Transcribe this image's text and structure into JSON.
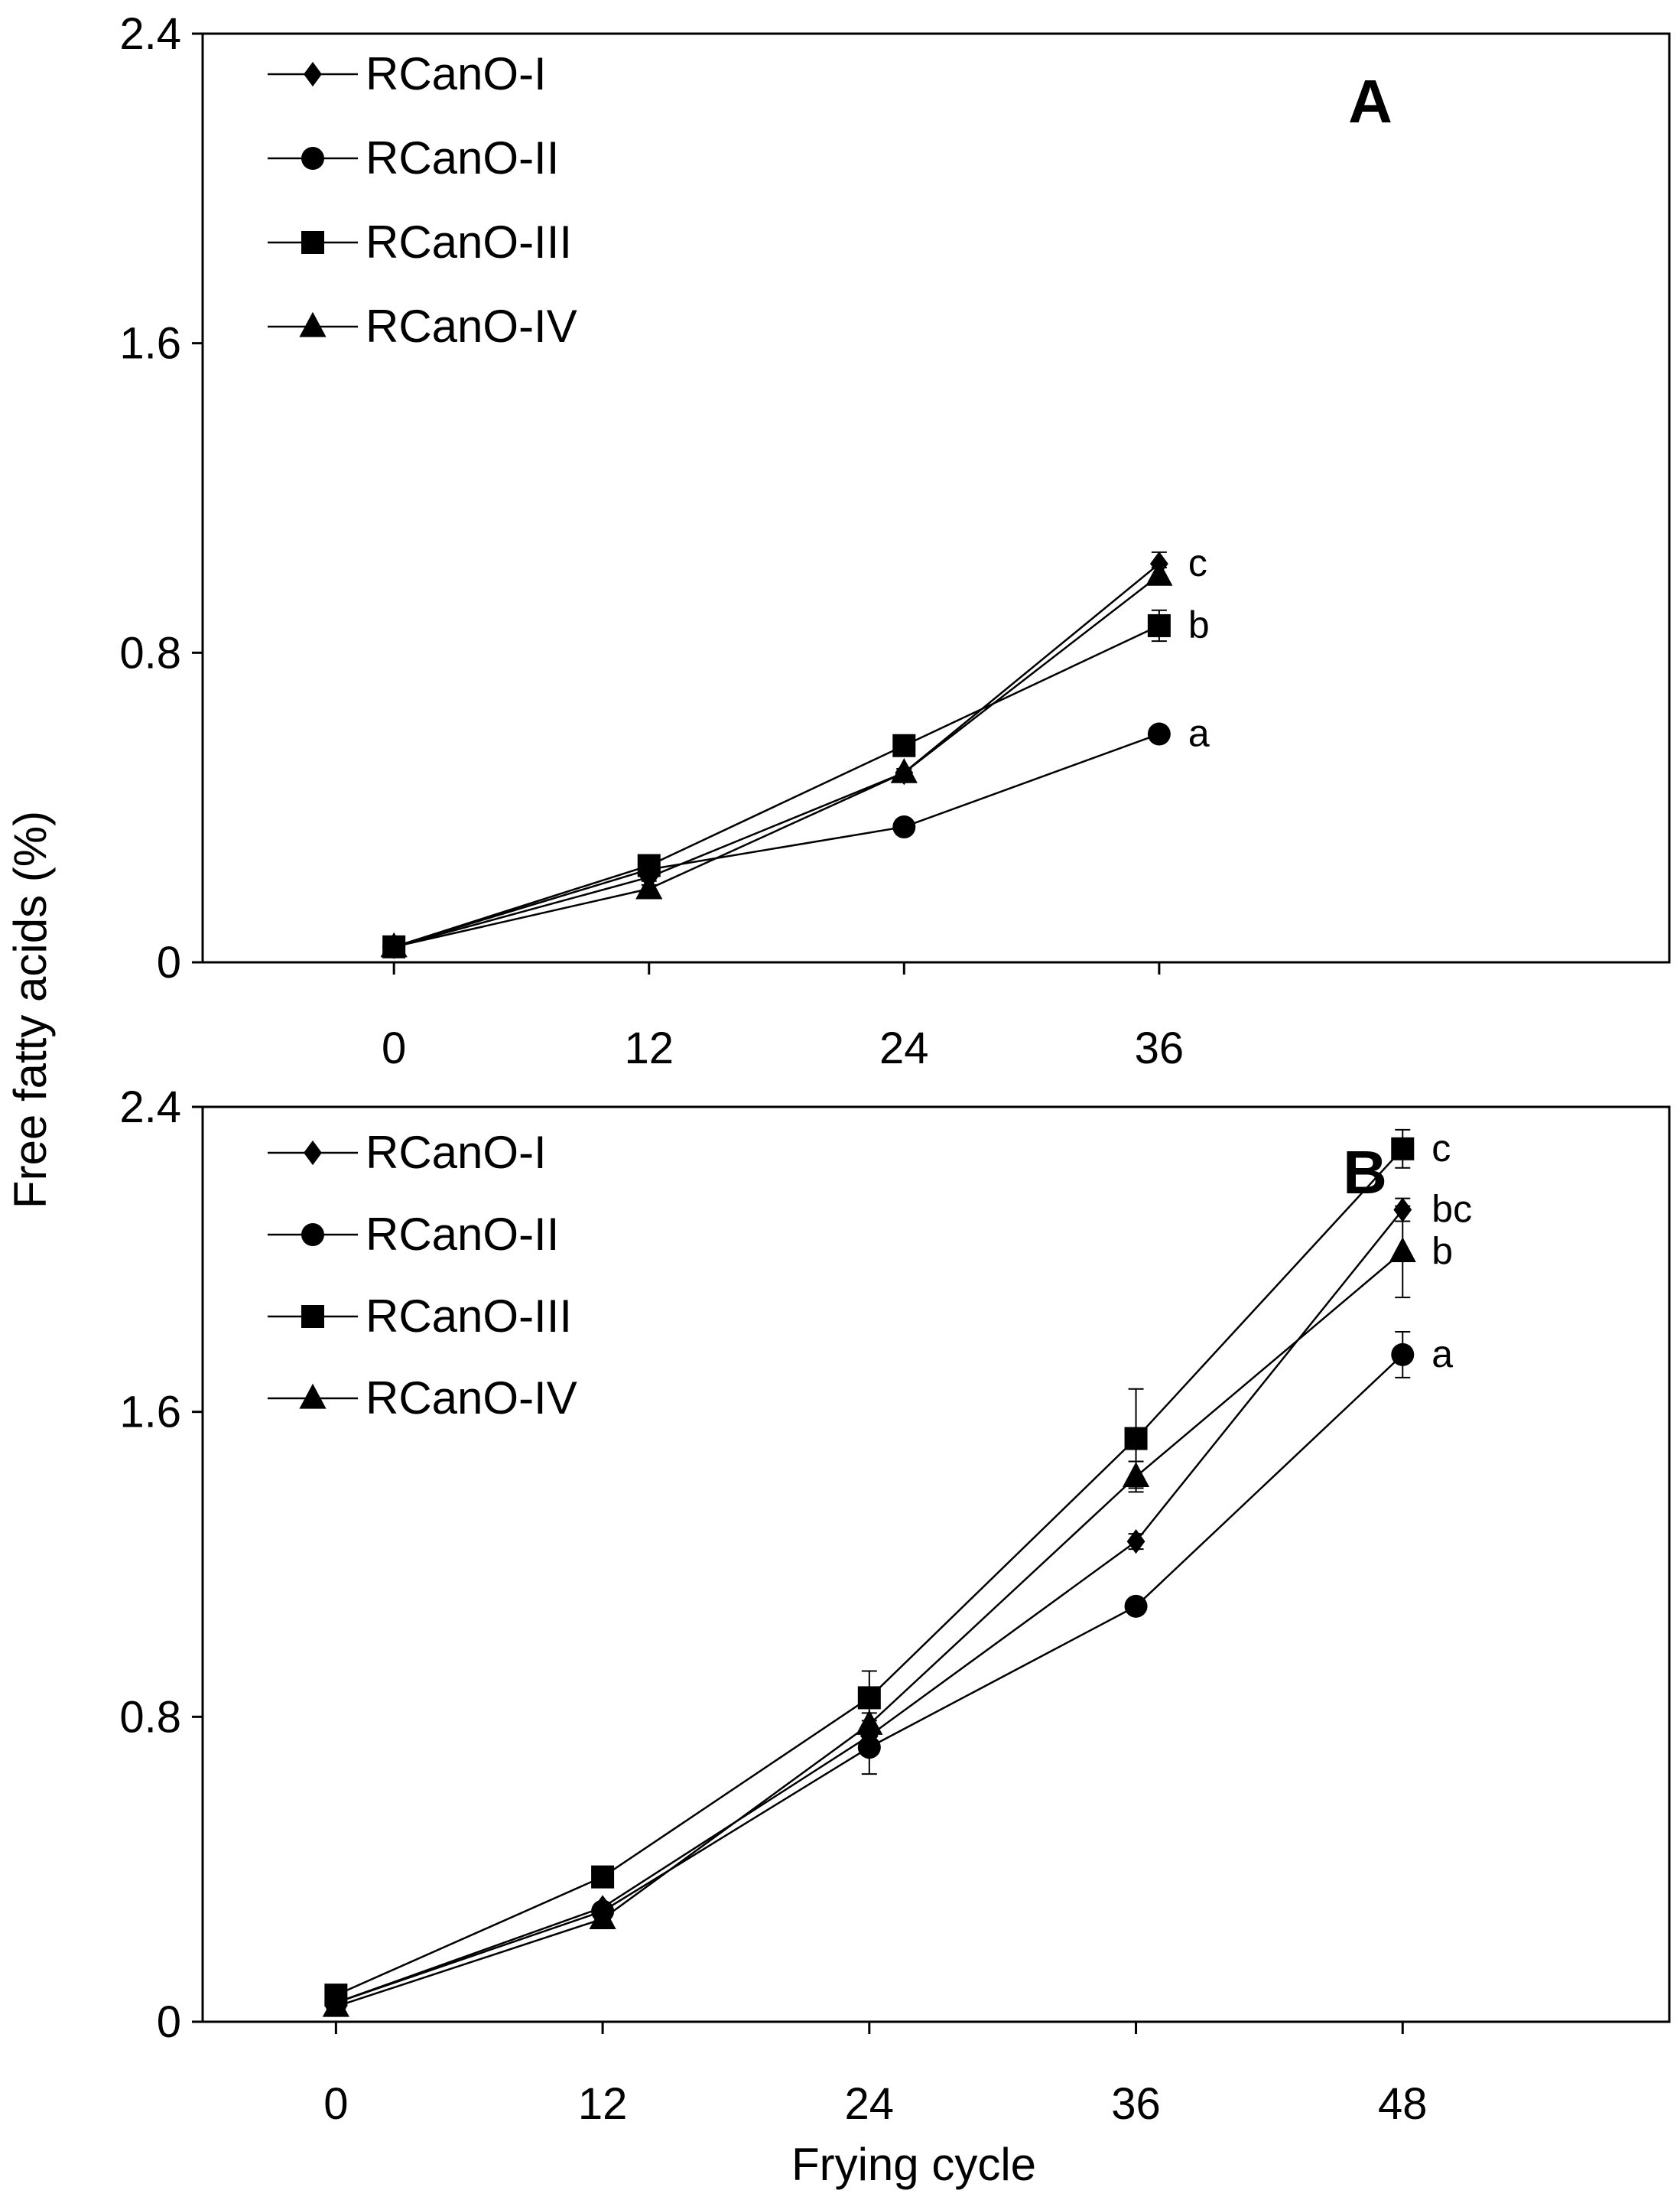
{
  "figure": {
    "ylabel": "Free fatty acids (%)",
    "xlabel": "Frying cycle"
  },
  "chart_data": [
    {
      "type": "line",
      "panel": "A",
      "title": "A",
      "x": [
        0,
        12,
        24,
        36
      ],
      "xticks": [
        "0",
        "12",
        "24",
        "36"
      ],
      "xlim": [
        -9,
        60
      ],
      "ylim": [
        0,
        2.4
      ],
      "yticks": [
        "0",
        "0.8",
        "1.6",
        "2.4"
      ],
      "ytick_values": [
        0,
        0.8,
        1.6,
        2.4
      ],
      "legend_position": "top-left",
      "series": [
        {
          "name": "RCanO-I",
          "marker": "diamond",
          "values": [
            0.04,
            0.22,
            0.49,
            1.03
          ],
          "errors": [
            0.005,
            0.01,
            0.01,
            0.03
          ],
          "letter": "c"
        },
        {
          "name": "RCanO-II",
          "marker": "circle",
          "values": [
            0.04,
            0.24,
            0.35,
            0.59
          ],
          "errors": [
            0.005,
            0.01,
            0.01,
            0.01
          ],
          "letter": "a"
        },
        {
          "name": "RCanO-III",
          "marker": "square",
          "values": [
            0.04,
            0.25,
            0.56,
            0.87
          ],
          "errors": [
            0.005,
            0.01,
            0.01,
            0.04
          ],
          "letter": "b"
        },
        {
          "name": "RCanO-IV",
          "marker": "triangle",
          "values": [
            0.04,
            0.19,
            0.49,
            1.0
          ],
          "errors": [
            0.005,
            0.01,
            0.01,
            0.02
          ],
          "letter": ""
        }
      ]
    },
    {
      "type": "line",
      "panel": "B",
      "title": "B",
      "x": [
        0,
        12,
        24,
        36,
        48
      ],
      "xticks": [
        "0",
        "12",
        "24",
        "36",
        "48"
      ],
      "xlim": [
        -6,
        60
      ],
      "ylim": [
        0,
        2.4
      ],
      "yticks": [
        "0",
        "0.8",
        "1.6",
        "2.4"
      ],
      "ytick_values": [
        0,
        0.8,
        1.6,
        2.4
      ],
      "legend_position": "top-left",
      "series": [
        {
          "name": "RCanO-I",
          "marker": "diamond",
          "values": [
            0.05,
            0.3,
            0.75,
            1.26,
            2.13
          ],
          "errors": [
            0.005,
            0.01,
            0.02,
            0.02,
            0.03
          ],
          "letter": "bc"
        },
        {
          "name": "RCanO-II",
          "marker": "circle",
          "values": [
            0.05,
            0.29,
            0.72,
            1.09,
            1.75
          ],
          "errors": [
            0.005,
            0.01,
            0.07,
            0.02,
            0.06
          ],
          "letter": "a"
        },
        {
          "name": "RCanO-III",
          "marker": "square",
          "values": [
            0.07,
            0.38,
            0.85,
            1.53,
            2.29
          ],
          "errors": [
            0.005,
            0.01,
            0.07,
            0.13,
            0.05
          ],
          "letter": "c"
        },
        {
          "name": "RCanO-IV",
          "marker": "triangle",
          "values": [
            0.04,
            0.27,
            0.78,
            1.43,
            2.02
          ],
          "errors": [
            0.005,
            0.01,
            0.03,
            0.04,
            0.12
          ],
          "letter": "b"
        }
      ]
    }
  ]
}
